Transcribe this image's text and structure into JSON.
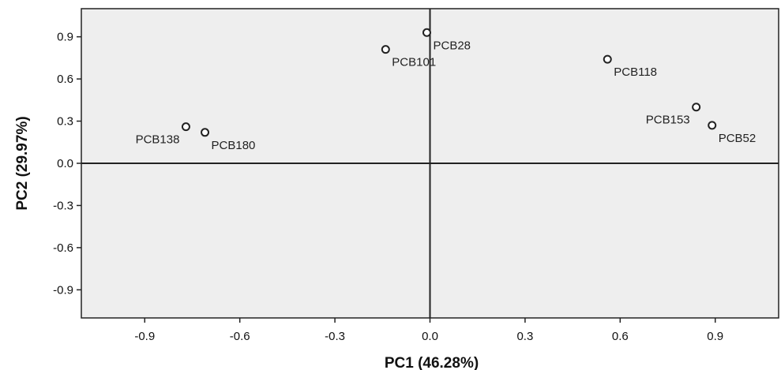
{
  "chart_data": {
    "type": "scatter",
    "xlabel": "PC1 (46.28%)",
    "ylabel": "PC2 (29.97%)",
    "xlim": [
      -1.1,
      1.1
    ],
    "ylim": [
      -1.1,
      1.1
    ],
    "xticks": [
      -0.9,
      -0.6,
      -0.3,
      0.0,
      0.3,
      0.6,
      0.9
    ],
    "yticks": [
      0.9,
      0.6,
      0.3,
      0.0,
      -0.3,
      -0.6,
      -0.9
    ],
    "xtick_labels": [
      "-0.9",
      "-0.6",
      "-0.3",
      "0.0",
      "0.3",
      "0.6",
      "0.9"
    ],
    "ytick_labels": [
      "0.9",
      "0.6",
      "0.3",
      "0.0",
      "-0.3",
      "-0.6",
      "-0.9"
    ],
    "grid": false,
    "reference_lines": {
      "x": 0,
      "y": 0
    },
    "plot_background": "#eeeeee",
    "marker": "open-circle",
    "points": [
      {
        "label": "PCB28",
        "x": -0.01,
        "y": 0.93,
        "label_position": "below-right"
      },
      {
        "label": "PCB101",
        "x": -0.14,
        "y": 0.81,
        "label_position": "below-right"
      },
      {
        "label": "PCB118",
        "x": 0.56,
        "y": 0.74,
        "label_position": "below-right"
      },
      {
        "label": "PCB153",
        "x": 0.84,
        "y": 0.4,
        "label_position": "below-left"
      },
      {
        "label": "PCB52",
        "x": 0.89,
        "y": 0.27,
        "label_position": "below-right"
      },
      {
        "label": "PCB138",
        "x": -0.77,
        "y": 0.26,
        "label_position": "below-left"
      },
      {
        "label": "PCB180",
        "x": -0.71,
        "y": 0.22,
        "label_position": "below-right"
      }
    ]
  }
}
